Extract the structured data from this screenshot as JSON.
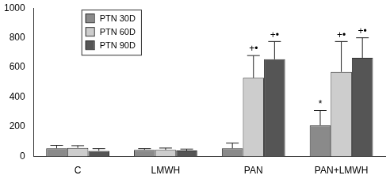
{
  "chart_data": {
    "type": "bar",
    "categories": [
      "C",
      "LMWH",
      "PAN",
      "PAN+LMWH"
    ],
    "series": [
      {
        "name": "PTN 30D",
        "color": "#8a8a8a",
        "values": [
          55,
          45,
          55,
          210
        ],
        "errors": [
          20,
          8,
          35,
          100
        ],
        "annotations": [
          null,
          null,
          null,
          "*"
        ]
      },
      {
        "name": "PTN 60D",
        "color": "#cdcdcd",
        "values": [
          58,
          45,
          530,
          570
        ],
        "errors": [
          15,
          12,
          150,
          205
        ],
        "annotations": [
          null,
          null,
          "+•",
          "+•"
        ]
      },
      {
        "name": "PTN 90D",
        "color": "#555555",
        "values": [
          38,
          40,
          655,
          665
        ],
        "errors": [
          15,
          10,
          120,
          135
        ],
        "annotations": [
          null,
          null,
          "+•",
          "+•"
        ]
      }
    ],
    "ylim": [
      0,
      1000
    ],
    "yticks": [
      0,
      200,
      400,
      600,
      800,
      1000
    ],
    "grid": false,
    "legend": "top-left"
  }
}
